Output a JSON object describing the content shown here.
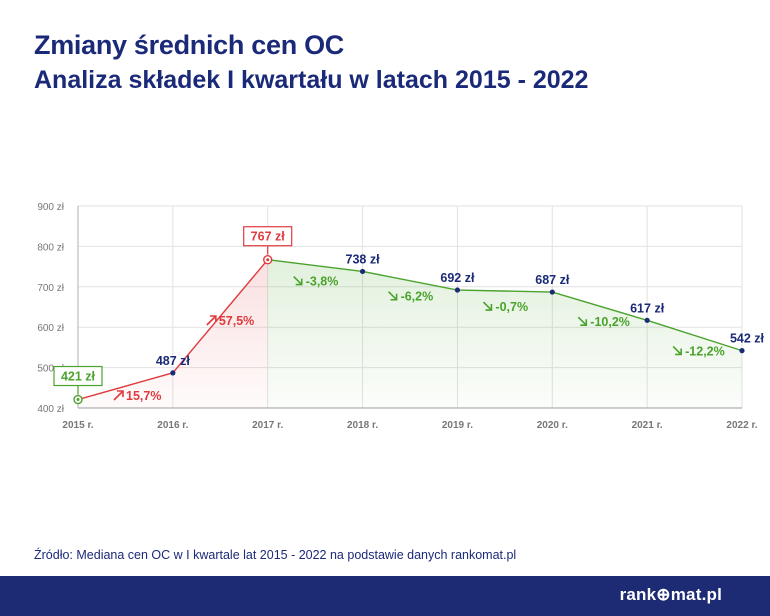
{
  "header": {
    "title": "Zmiany średnich cen OC",
    "subtitle": "Analiza składek I kwartału w latach 2015 - 2022"
  },
  "chart_data": {
    "type": "line",
    "categories": [
      "2015 r.",
      "2016 r.",
      "2017 r.",
      "2018 r.",
      "2019 r.",
      "2020 r.",
      "2021 r.",
      "2022 r."
    ],
    "values": [
      421,
      487,
      767,
      738,
      692,
      687,
      617,
      542
    ],
    "value_labels": [
      "421 zł",
      "487 zł",
      "767 zł",
      "738 zł",
      "692 zł",
      "687 zł",
      "617 zł",
      "542 zł"
    ],
    "changes": [
      "15,7%",
      "57,5%",
      "-3,8%",
      "-6,2%",
      "-0,7%",
      "-10,2%",
      "-12,2%"
    ],
    "y_ticks": [
      400,
      500,
      600,
      700,
      800,
      900
    ],
    "y_tick_labels": [
      "400 zł",
      "500 zł",
      "600 zł",
      "700 zł",
      "800 zł",
      "900 zł"
    ],
    "ylim": [
      400,
      900
    ],
    "grid": true,
    "colors": {
      "rise": "#e03a3e",
      "fall": "#4aa32c",
      "point": "#1b2a78",
      "grid": "#e2e2e2",
      "axis": "#b0b0b0",
      "text": "#1b2a78"
    }
  },
  "source": "Źródło: Mediana cen OC w I kwartale lat 2015 - 2022 na podstawie danych rankomat.pl",
  "footer": {
    "logo": "rank⊕mat.pl"
  }
}
